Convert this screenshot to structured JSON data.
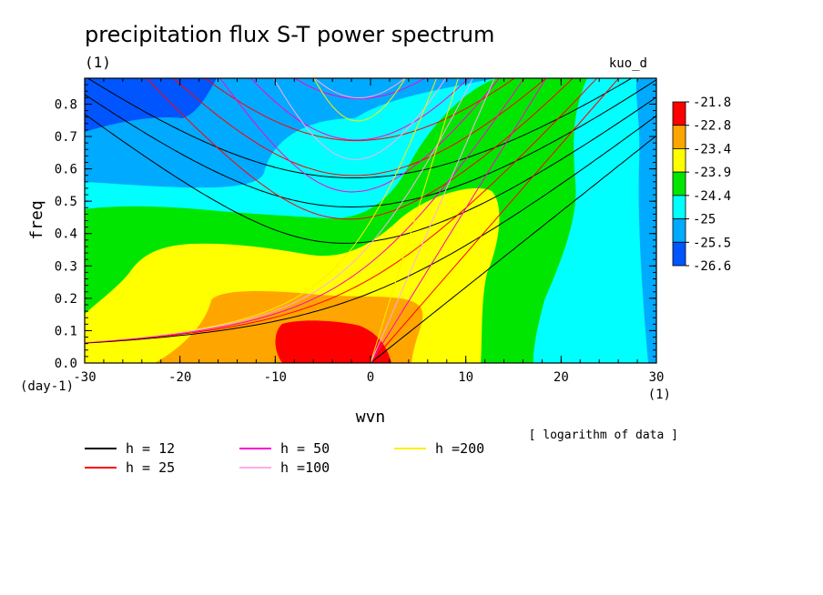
{
  "chart_data": {
    "type": "heatmap",
    "title": "precipitation flux S-T power spectrum",
    "subtitle_left": "(1)",
    "subtitle_right": "kuo_d",
    "xlabel": "wvn",
    "ylabel": "freq",
    "x_unit_label": "(1)",
    "y_unit_label": "(day-1)",
    "xlim": [
      -30,
      30
    ],
    "ylim": [
      0.0,
      0.88
    ],
    "x_ticks": [
      -30,
      -20,
      -10,
      0,
      10,
      20,
      30
    ],
    "x_tick_labels": [
      "-30",
      "-20",
      "-10",
      "0",
      "10",
      "20",
      "30"
    ],
    "y_ticks": [
      0.0,
      0.1,
      0.2,
      0.3,
      0.4,
      0.5,
      0.6,
      0.7,
      0.8
    ],
    "y_tick_labels": [
      "0.0",
      "0.1",
      "0.2",
      "0.3",
      "0.4",
      "0.5",
      "0.6",
      "0.7",
      "0.8"
    ],
    "colorbar": {
      "labels": [
        "-21.8",
        "-22.8",
        "-23.4",
        "-23.9",
        "-24.4",
        "-25",
        "-25.5",
        "-26.6"
      ],
      "colors": [
        "#ff0000",
        "#ffa500",
        "#ffff00",
        "#00e600",
        "#00ffff",
        "#00aaff",
        "#0055ff"
      ]
    },
    "note": "[ logarithm of data ]",
    "dispersion_curves": [
      {
        "name": "h = 12",
        "color": "#000000"
      },
      {
        "name": "h = 25",
        "color": "#ff0000"
      },
      {
        "name": "h = 50",
        "color": "#ff00cc"
      },
      {
        "name": "h =100",
        "color": "#ffaaee"
      },
      {
        "name": "h =200",
        "color": "#ffee00"
      }
    ]
  }
}
